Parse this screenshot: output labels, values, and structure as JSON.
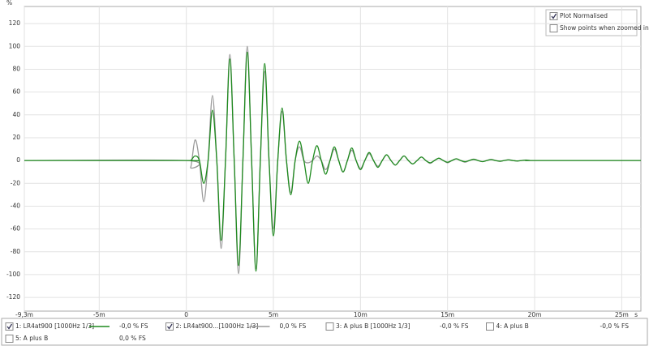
{
  "chart_data": {
    "type": "line",
    "y_unit": "%",
    "x_unit": "s",
    "xlim": [
      -9.3,
      26.1
    ],
    "ylim": [
      -132,
      135
    ],
    "xticks": [
      {
        "value": -9.3,
        "label": "-9,3m"
      },
      {
        "value": -5,
        "label": "-5m"
      },
      0,
      {
        "value": 5,
        "label": "5m"
      },
      {
        "value": 10,
        "label": "10m"
      },
      {
        "value": 15,
        "label": "15m"
      },
      {
        "value": 20,
        "label": "20m"
      },
      {
        "value": 25,
        "label": "25m"
      }
    ],
    "yticks": [
      -120,
      -100,
      -80,
      -60,
      -40,
      -20,
      0,
      20,
      40,
      60,
      80,
      100,
      120
    ],
    "grid": true,
    "x": [
      -9.3,
      0,
      0.25,
      0.5,
      0.75,
      1,
      1.25,
      1.5,
      1.75,
      2,
      2.25,
      2.5,
      2.75,
      3,
      3.25,
      3.5,
      3.75,
      4,
      4.25,
      4.5,
      4.75,
      5,
      5.25,
      5.5,
      5.75,
      6,
      6.25,
      6.5,
      6.75,
      7,
      7.25,
      7.5,
      7.75,
      8,
      8.25,
      8.5,
      8.75,
      9,
      9.25,
      9.5,
      9.75,
      10,
      10.25,
      10.5,
      10.75,
      11,
      11.25,
      11.5,
      11.75,
      12,
      12.25,
      12.5,
      12.75,
      13,
      13.25,
      13.5,
      13.75,
      14,
      14.25,
      14.5,
      14.75,
      15,
      15.25,
      15.5,
      15.75,
      16,
      16.25,
      16.5,
      16.75,
      17,
      17.25,
      17.5,
      17.75,
      18,
      18.25,
      18.5,
      18.75,
      19,
      19.25,
      19.5,
      19.75,
      20,
      26.1
    ],
    "series": [
      {
        "name": "1: LR4at900 [1000Hz 1/3]",
        "color": "#1e8a1e",
        "checked": true,
        "readout": "-0,0 % FS",
        "values": [
          0,
          0,
          0,
          4,
          0,
          -20,
          0,
          44,
          0,
          -70,
          0,
          89,
          0,
          -92,
          0,
          95,
          0,
          -97,
          0,
          85,
          0,
          -66,
          0,
          46,
          0,
          -30,
          0,
          17,
          0,
          -20,
          0,
          13,
          0,
          -12,
          0,
          12,
          0,
          -10,
          0,
          11,
          0,
          -8,
          0,
          7,
          0,
          -6,
          0,
          5,
          0,
          -4,
          0,
          4,
          0,
          -3,
          0,
          3,
          0,
          -2,
          0,
          2,
          0,
          -1.5,
          0,
          1.5,
          0,
          -1,
          0,
          1,
          0,
          -1,
          0,
          0.8,
          0,
          -0.6,
          0,
          0.5,
          0,
          -0.4,
          0,
          0.3,
          0,
          0,
          0
        ]
      },
      {
        "name": "2: LR4at900...[1000Hz 1/3]",
        "color": "#999999",
        "checked": true,
        "readout": "0,0 % FS",
        "values": [
          0,
          0,
          -6,
          18,
          0,
          -36,
          0,
          57,
          0,
          -77,
          0,
          93,
          0,
          -99,
          0,
          100,
          0,
          -95,
          0,
          78,
          0,
          -60,
          0,
          43,
          0,
          -28,
          0,
          12,
          0,
          -2,
          0,
          4,
          0,
          -8,
          0,
          10,
          0,
          -10,
          0,
          9,
          0,
          -7,
          0,
          6,
          0,
          -5,
          0,
          5,
          0,
          -4,
          0,
          4,
          0,
          -3,
          0,
          3,
          0,
          -2.5,
          0,
          2,
          0,
          -2,
          0,
          1.5,
          0,
          -1.5,
          0,
          1.2,
          0,
          -1,
          0,
          1,
          0,
          -0.8,
          0,
          0.7,
          0,
          -0.5,
          0,
          0.4,
          0,
          0,
          0
        ]
      }
    ],
    "hidden_traces": [
      {
        "name": "3: A plus B [1000Hz 1/3]",
        "color": "#2a9a9a",
        "checked": false,
        "readout": "-0,0 % FS"
      },
      {
        "name": "4: A plus B",
        "color": "#b03cb0",
        "checked": false,
        "readout": "-0,0 % FS"
      },
      {
        "name": "5: A plus B",
        "color": "#b03cb0",
        "checked": false,
        "readout": "0,0 % FS"
      }
    ],
    "options": [
      {
        "label": "Plot Normalised",
        "checked": true
      },
      {
        "label": "Show points when zoomed in",
        "checked": false
      }
    ]
  }
}
